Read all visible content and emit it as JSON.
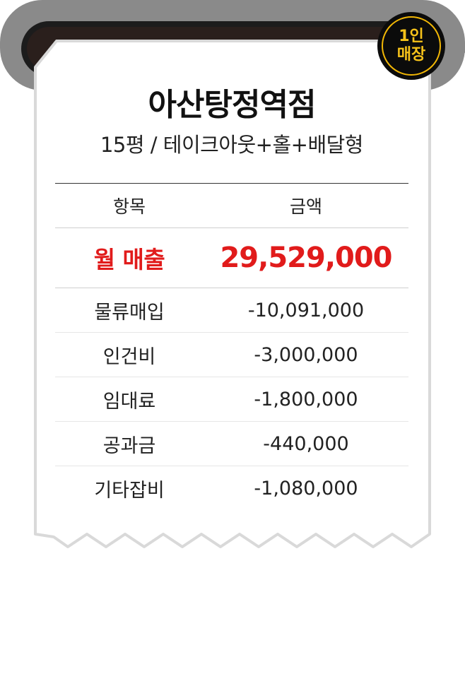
{
  "badge": {
    "line1": "1인",
    "line2": "매장"
  },
  "store": {
    "name": "아산탕정역점",
    "subtitle": "15평 / 테이크아웃+홀+배달형"
  },
  "table": {
    "header": {
      "item": "항목",
      "amount": "금액"
    },
    "revenue": {
      "label": "월 매출",
      "amount": "29,529,000"
    },
    "expenses": [
      {
        "label": "물류매입",
        "amount": "-10,091,000"
      },
      {
        "label": "인건비",
        "amount": "-3,000,000"
      },
      {
        "label": "임대료",
        "amount": "-1,800,000"
      },
      {
        "label": "공과금",
        "amount": "-440,000"
      },
      {
        "label": "기타잡비",
        "amount": "-1,080,000"
      }
    ]
  },
  "colors": {
    "accent_red": "#e11b1b",
    "badge_gold": "#f6c21a",
    "printer_gray": "#8a8a8a",
    "printer_dark": "#1a1a1a"
  }
}
